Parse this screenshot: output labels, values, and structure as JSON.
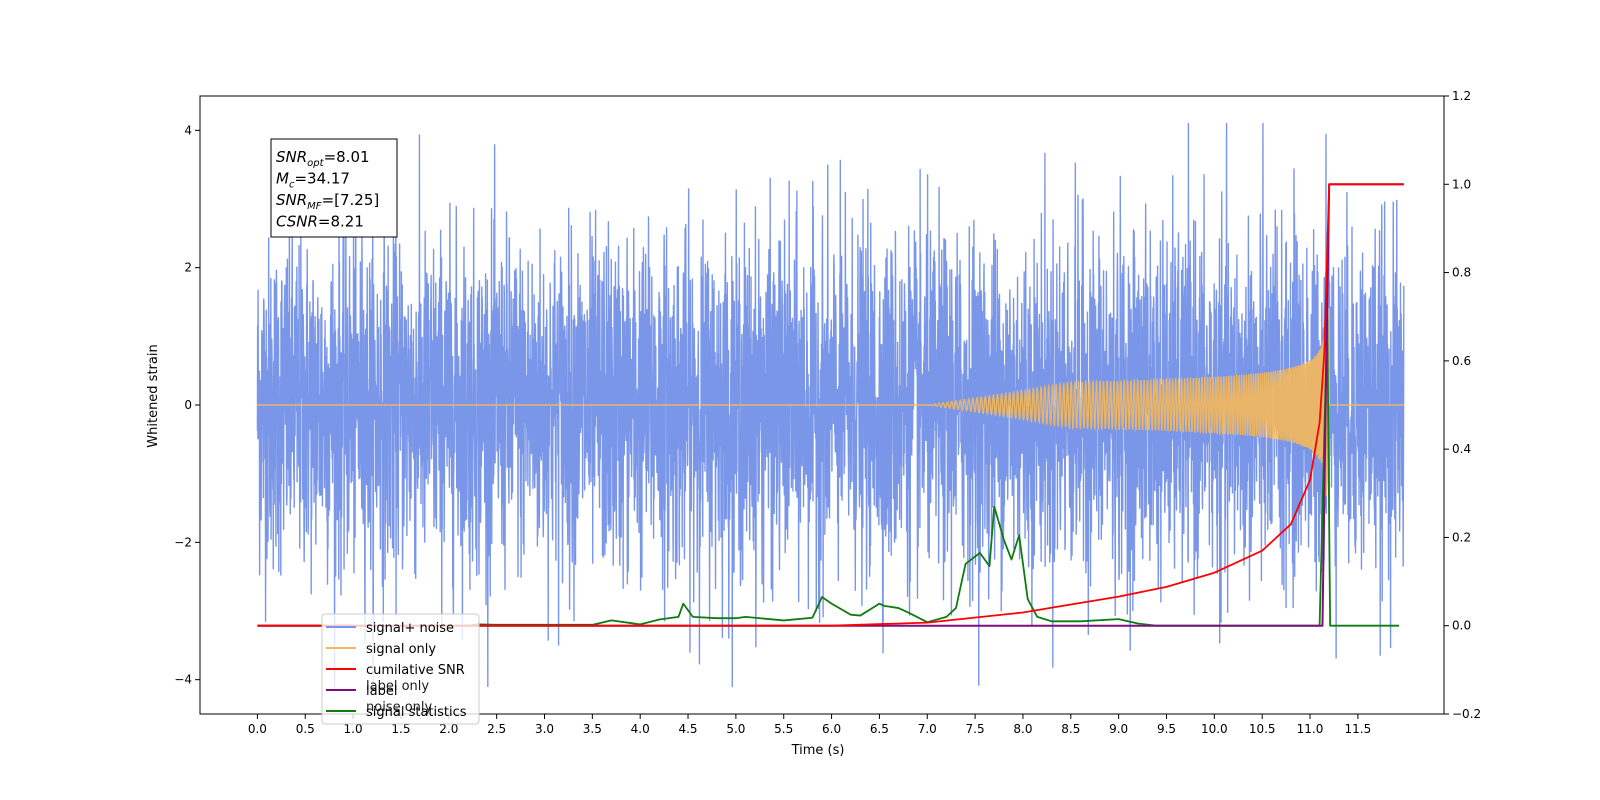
{
  "chart_data": {
    "type": "line",
    "xlabel": "Time (s)",
    "ylabel": "Whitened strain",
    "xlim": [
      -0.6,
      12.4
    ],
    "ylim": [
      -4.5,
      4.5
    ],
    "y2lim": [
      -0.2,
      1.2
    ],
    "x_ticks": [
      0.0,
      0.5,
      1.0,
      1.5,
      2.0,
      2.5,
      3.0,
      3.5,
      4.0,
      4.5,
      5.0,
      5.5,
      6.0,
      6.5,
      7.0,
      7.5,
      8.0,
      8.5,
      9.0,
      9.5,
      10.0,
      10.5,
      11.0,
      11.5
    ],
    "x_tick_labels": [
      "0.0",
      "0.5",
      "1.0",
      "1.5",
      "2.0",
      "2.5",
      "3.0",
      "3.5",
      "4.0",
      "4.5",
      "5.0",
      "5.5",
      "6.0",
      "6.5",
      "7.0",
      "7.5",
      "8.0",
      "8.5",
      "9.0",
      "9.5",
      "10.0",
      "10.5",
      "11.0",
      "11.5"
    ],
    "y_ticks": [
      -4,
      -2,
      0,
      2,
      4
    ],
    "y_tick_labels": [
      "−4",
      "−2",
      "0",
      "2",
      "4"
    ],
    "y2_ticks": [
      -0.2,
      0.0,
      0.2,
      0.4,
      0.6,
      0.8,
      1.0,
      1.2
    ],
    "y2_tick_labels": [
      "−0.2",
      "0.0",
      "0.2",
      "0.4",
      "0.6",
      "0.8",
      "1.0",
      "1.2"
    ],
    "grid": false,
    "legend_placement": "lower-left",
    "colors": {
      "signal_noise": "#7a96e8",
      "signal_only": "#f5b85a",
      "cumulative_snr": "#ff0000",
      "label": "#7b0f7b",
      "signal_statistics": "#117a11"
    },
    "signal_noise": {
      "x_range": [
        0.0,
        11.98
      ],
      "typical_amplitude": 1.2,
      "max": 4.1,
      "min": -4.1
    },
    "signal_only": {
      "chirp_start": 7.0,
      "merger_time": 11.18,
      "peak_amplitude": 1.7,
      "x_range": [
        0.0,
        11.98
      ]
    },
    "cumulative_snr": {
      "x": [
        0.0,
        6.0,
        7.0,
        8.0,
        8.5,
        9.0,
        9.5,
        10.0,
        10.5,
        10.8,
        11.0,
        11.1,
        11.15,
        11.18,
        11.2,
        11.98
      ],
      "y": [
        0.0,
        0.0,
        0.007,
        0.03,
        0.048,
        0.066,
        0.088,
        0.12,
        0.17,
        0.23,
        0.33,
        0.46,
        0.62,
        0.85,
        1.0,
        1.0
      ]
    },
    "label": {
      "x": [
        0.0,
        11.13,
        11.17,
        11.2,
        11.22,
        11.98
      ],
      "y": [
        0.0,
        0.0,
        0.6,
        1.0,
        1.0,
        1.0
      ]
    },
    "signal_statistics": {
      "x": [
        0.0,
        2.2,
        2.3,
        2.5,
        2.7,
        3.0,
        3.5,
        3.7,
        3.9,
        4.0,
        4.2,
        4.4,
        4.45,
        4.55,
        4.8,
        5.0,
        5.1,
        5.5,
        5.8,
        5.9,
        6.0,
        6.2,
        6.3,
        6.5,
        6.55,
        6.7,
        6.8,
        7.0,
        7.2,
        7.3,
        7.4,
        7.55,
        7.65,
        7.7,
        7.8,
        7.88,
        7.96,
        8.05,
        8.15,
        8.3,
        8.6,
        9.0,
        9.2,
        9.4,
        9.5,
        11.1,
        11.18,
        11.21,
        11.25,
        11.93
      ],
      "y": [
        0.0,
        0.0,
        0.003,
        0.002,
        0.002,
        0.002,
        0.002,
        0.012,
        0.006,
        0.003,
        0.014,
        0.02,
        0.05,
        0.02,
        0.017,
        0.017,
        0.02,
        0.012,
        0.018,
        0.065,
        0.05,
        0.025,
        0.023,
        0.05,
        0.045,
        0.04,
        0.03,
        0.008,
        0.02,
        0.04,
        0.14,
        0.165,
        0.135,
        0.27,
        0.195,
        0.15,
        0.205,
        0.06,
        0.02,
        0.01,
        0.01,
        0.015,
        0.005,
        0.0,
        0.0,
        0.0,
        0.7,
        0.0,
        0.0,
        0.0
      ]
    },
    "textbox_lines": [
      {
        "base": "SNR",
        "sub": "opt",
        "value": "=8.01"
      },
      {
        "base": "M",
        "sub": "c",
        "value": "=34.17"
      },
      {
        "base": "SNR",
        "sub": "MF",
        "value": "=[7.25]"
      },
      {
        "base": "CSNR",
        "sub": "",
        "value": "=8.21"
      }
    ],
    "legend": [
      {
        "label": "signal+ noise",
        "color": "#7a96e8"
      },
      {
        "label": "signal only",
        "color": "#f5b85a"
      },
      {
        "label": "cumilative SNR",
        "color": "#ff0000"
      },
      {
        "label": "label",
        "color": "#7b0f7b"
      },
      {
        "label": "signal statistics",
        "color": "#117a11"
      }
    ],
    "legend_ghost_labels": [
      "label only",
      "noise only"
    ]
  }
}
